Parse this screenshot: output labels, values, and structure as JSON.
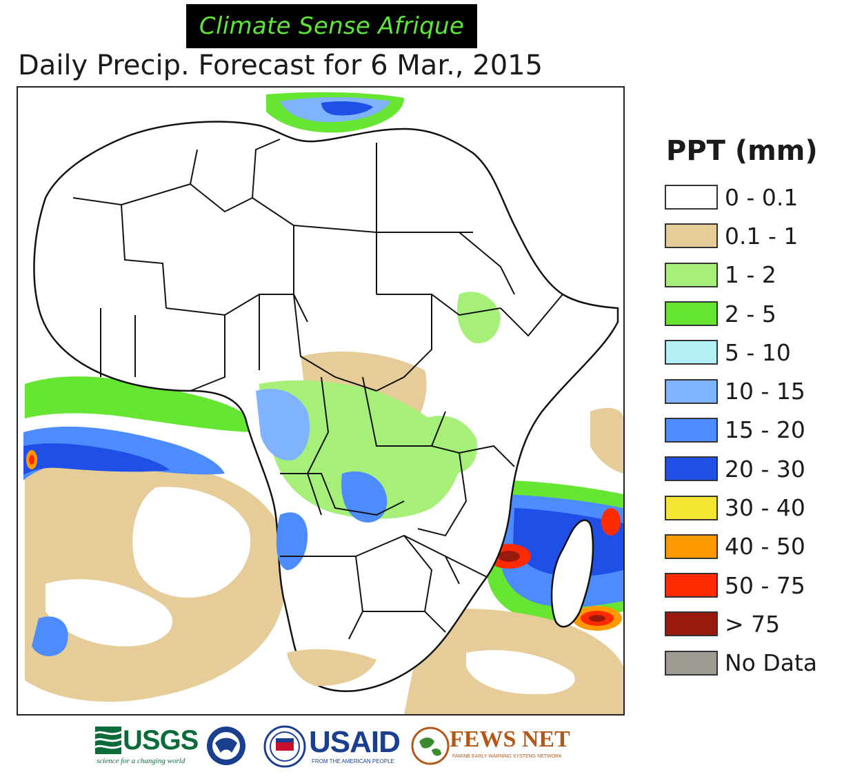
{
  "banner": {
    "text": "Climate Sense Afrique"
  },
  "map": {
    "title": "Daily Precip. Forecast for 6 Mar., 2015"
  },
  "legend": {
    "title": "PPT (mm)",
    "items": [
      {
        "label": "0 - 0.1",
        "color": "#ffffff"
      },
      {
        "label": "0.1 - 1",
        "color": "#e6cc99"
      },
      {
        "label": "1 - 2",
        "color": "#a6f07a"
      },
      {
        "label": "2 - 5",
        "color": "#66e633"
      },
      {
        "label": "5 - 10",
        "color": "#b3f0f5"
      },
      {
        "label": "10 - 15",
        "color": "#80b3ff"
      },
      {
        "label": "15 - 20",
        "color": "#4d8cff"
      },
      {
        "label": "20 - 30",
        "color": "#1f4fe6"
      },
      {
        "label": "30 - 40",
        "color": "#f5e633"
      },
      {
        "label": "40 - 50",
        "color": "#ff9900"
      },
      {
        "label": "50 - 75",
        "color": "#ff2a00"
      },
      {
        "label": "> 75",
        "color": "#991a0d"
      },
      {
        "label": "No Data",
        "color": "#9e9993"
      }
    ]
  },
  "logos": {
    "usgs": {
      "name": "USGS",
      "tagline": "science for a changing world"
    },
    "noaa": {
      "icon": "noaa-seal-icon"
    },
    "usaid": {
      "name": "USAID",
      "tagline": "FROM THE AMERICAN PEOPLE"
    },
    "fews": {
      "name": "FEWS NET",
      "tagline": "FAMINE EARLY WARNING SYSTEMS NETWORK"
    }
  }
}
